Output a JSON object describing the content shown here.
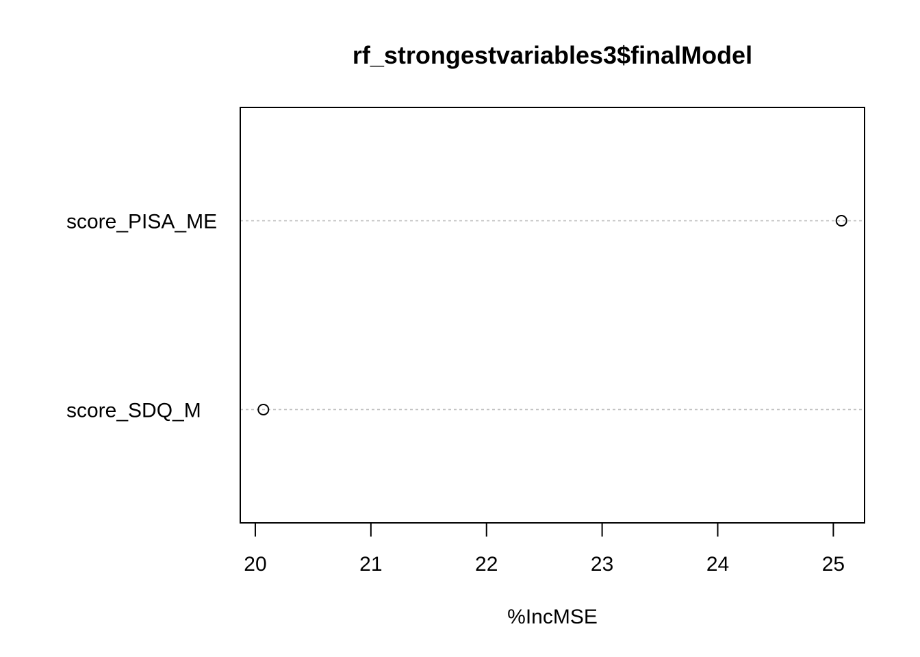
{
  "chart_data": {
    "type": "scatter",
    "subtype": "dotchart",
    "title": "rf_strongestvariables3$finalModel",
    "xlabel": "%IncMSE",
    "ylabel": "",
    "categories": [
      "score_SDQ_M",
      "score_PISA_ME"
    ],
    "values": [
      20.07,
      25.07
    ],
    "xlim": [
      19.87,
      25.27
    ],
    "xticks": [
      20,
      21,
      22,
      23,
      24,
      25
    ],
    "xtick_labels": [
      "20",
      "21",
      "22",
      "23",
      "24",
      "25"
    ],
    "grid": "dotted horizontal guide lines at each category",
    "colors": {
      "points": "#000000",
      "guides": "#bebebe",
      "frame": "#000000"
    }
  }
}
